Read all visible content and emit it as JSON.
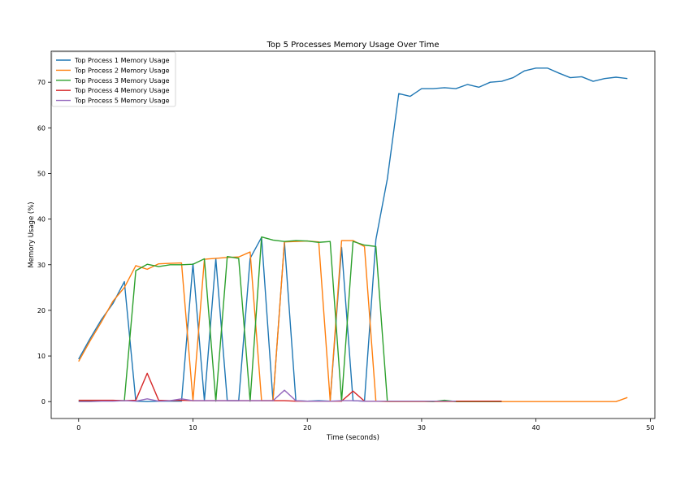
{
  "chart_data": {
    "type": "line",
    "title": "Top 5 Processes Memory Usage Over Time",
    "xlabel": "Time (seconds)",
    "ylabel": "Memory Usage (%)",
    "xlim": [
      -2.4,
      50.4
    ],
    "ylim": [
      -3.7,
      76.8
    ],
    "xticks": [
      0,
      10,
      20,
      30,
      40,
      50
    ],
    "yticks": [
      0,
      10,
      20,
      30,
      40,
      50,
      60,
      70
    ],
    "grid": false,
    "legend_position": "top-left",
    "series": [
      {
        "name": "Top Process 1 Memory Usage",
        "color": "#1f77b4",
        "x": [
          0,
          1,
          2,
          3,
          4,
          5,
          6,
          7,
          8,
          9,
          10,
          11,
          12,
          13,
          14,
          15,
          16,
          17,
          18,
          19,
          20,
          21,
          22,
          23,
          24,
          25,
          26,
          27,
          28,
          29,
          30,
          31,
          32,
          33,
          34,
          35,
          36,
          37,
          38,
          39,
          40,
          41,
          42,
          43,
          44,
          45,
          46,
          47,
          48
        ],
        "y": [
          9.3,
          13.8,
          18.0,
          21.5,
          26.3,
          0.1,
          0.0,
          0.1,
          0.1,
          0.1,
          30.2,
          0.2,
          31.3,
          0.2,
          0.2,
          31.4,
          36.0,
          0.2,
          35.0,
          0.2,
          0.1,
          0.2,
          0.1,
          33.8,
          0.2,
          0.1,
          35.5,
          48.8,
          67.5,
          66.9,
          68.6,
          68.6,
          68.8,
          68.6,
          69.5,
          68.9,
          70.0,
          70.2,
          71.0,
          72.5,
          73.1,
          73.1,
          72.0,
          71.0,
          71.2,
          70.2,
          70.8,
          71.1,
          70.8
        ]
      },
      {
        "name": "Top Process 2 Memory Usage",
        "color": "#ff7f0e",
        "x": [
          0,
          1,
          2,
          3,
          4,
          5,
          6,
          7,
          8,
          9,
          10,
          11,
          12,
          13,
          14,
          15,
          16,
          17,
          18,
          19,
          20,
          21,
          22,
          23,
          24,
          25,
          26,
          27,
          28,
          29,
          30,
          31,
          32,
          33,
          34,
          35,
          36,
          37,
          38,
          39,
          40,
          41,
          42,
          43,
          44,
          45,
          46,
          47,
          48
        ],
        "y": [
          8.8,
          13.3,
          17.5,
          22.0,
          25.0,
          29.8,
          29.0,
          30.2,
          30.3,
          30.4,
          0.2,
          31.2,
          31.4,
          31.6,
          31.7,
          32.8,
          0.2,
          0.2,
          35.0,
          35.1,
          35.2,
          35.0,
          0.2,
          35.3,
          35.3,
          34.0,
          0.1,
          0.0,
          0.0,
          0.0,
          0.0,
          0.0,
          0.0,
          0.0,
          0.0,
          0.0,
          0.0,
          0.0,
          0.0,
          0.0,
          0.0,
          0.0,
          0.0,
          0.0,
          0.0,
          0.0,
          0.0,
          0.0,
          0.9
        ]
      },
      {
        "name": "Top Process 3 Memory Usage",
        "color": "#2ca02c",
        "x": [
          0,
          1,
          2,
          3,
          4,
          5,
          6,
          7,
          8,
          9,
          10,
          11,
          12,
          13,
          14,
          15,
          16,
          17,
          18,
          19,
          20,
          21,
          22,
          23,
          24,
          25,
          26,
          27,
          28,
          29,
          30,
          31,
          32,
          33,
          34,
          35,
          36,
          37
        ],
        "y": [
          0.1,
          0.2,
          0.2,
          0.2,
          0.2,
          28.7,
          30.1,
          29.6,
          30.0,
          30.0,
          30.1,
          31.3,
          0.1,
          31.8,
          31.4,
          0.1,
          36.1,
          35.4,
          35.1,
          35.3,
          35.2,
          34.9,
          35.1,
          0.1,
          35.1,
          34.3,
          34.0,
          0.1,
          0.1,
          0.1,
          0.1,
          0.0,
          0.3,
          0.0,
          0.0,
          0.0,
          0.0,
          0.0
        ]
      },
      {
        "name": "Top Process 4 Memory Usage",
        "color": "#d62728",
        "x": [
          0,
          1,
          2,
          3,
          4,
          5,
          6,
          7,
          8,
          9,
          10,
          11,
          12,
          13,
          14,
          15,
          16,
          17,
          18,
          19,
          20,
          21,
          22,
          23,
          24,
          25,
          26,
          27,
          28,
          29,
          30,
          31,
          32,
          33,
          34,
          35,
          36,
          37
        ],
        "y": [
          0.3,
          0.3,
          0.3,
          0.3,
          0.2,
          0.3,
          6.2,
          0.3,
          0.2,
          0.3,
          0.2,
          0.2,
          0.2,
          0.2,
          0.2,
          0.2,
          0.2,
          0.2,
          0.2,
          0.1,
          0.1,
          0.1,
          0.1,
          0.1,
          2.3,
          0.1,
          0.1,
          0.1,
          0.1,
          0.1,
          0.1,
          0.1,
          0.1,
          0.1,
          0.1,
          0.1,
          0.1,
          0.1
        ]
      },
      {
        "name": "Top Process 5 Memory Usage",
        "color": "#9467bd",
        "x": [
          0,
          1,
          2,
          3,
          4,
          5,
          6,
          7,
          8,
          9,
          10,
          11,
          12,
          13,
          14,
          15,
          16,
          17,
          18,
          19,
          20,
          21,
          22,
          23,
          24,
          25,
          26,
          27,
          28,
          29,
          30,
          31,
          32,
          33
        ],
        "y": [
          0.0,
          0.0,
          0.1,
          0.1,
          0.2,
          0.1,
          0.6,
          0.1,
          0.2,
          0.6,
          0.2,
          0.2,
          0.2,
          0.2,
          0.2,
          0.2,
          0.2,
          0.2,
          2.5,
          0.2,
          0.1,
          0.1,
          0.1,
          0.2,
          0.2,
          0.1,
          0.1,
          0.1,
          0.1,
          0.1,
          0.1,
          0.1,
          0.1,
          0.1
        ]
      }
    ]
  }
}
